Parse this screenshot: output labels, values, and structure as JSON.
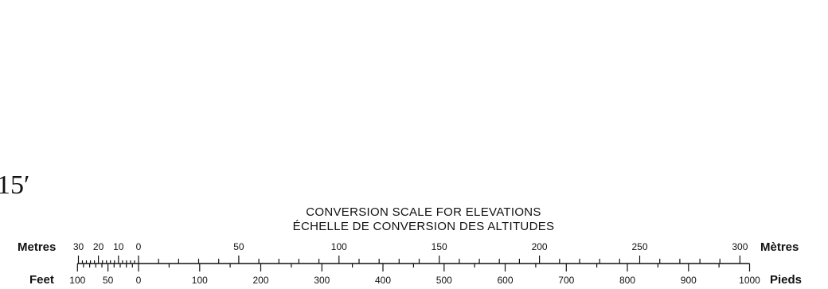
{
  "corner_label": "15′",
  "title": {
    "line1": "CONVERSION SCALE FOR ELEVATIONS",
    "line2": "ÉCHELLE DE CONVERSION DES ALTITUDES"
  },
  "units": {
    "metres_left": "Metres",
    "metres_right": "Mètres",
    "feet_left": "Feet",
    "feet_right": "Pieds"
  },
  "metres_scale": {
    "labels": [
      "30",
      "20",
      "10",
      "0",
      "50",
      "100",
      "150",
      "200",
      "250",
      "300"
    ],
    "values": [
      -30,
      -20,
      -10,
      0,
      50,
      100,
      150,
      200,
      250,
      300
    ],
    "range": [
      -30,
      300
    ]
  },
  "feet_scale": {
    "labels": [
      "100",
      "50",
      "0",
      "100",
      "200",
      "300",
      "400",
      "500",
      "600",
      "700",
      "800",
      "900",
      "1000"
    ],
    "values": [
      -100,
      -50,
      0,
      100,
      200,
      300,
      400,
      500,
      600,
      700,
      800,
      900,
      1000
    ],
    "range": [
      -100,
      1000
    ]
  },
  "colors": {
    "ink": "#111111",
    "paper": "#ffffff"
  }
}
